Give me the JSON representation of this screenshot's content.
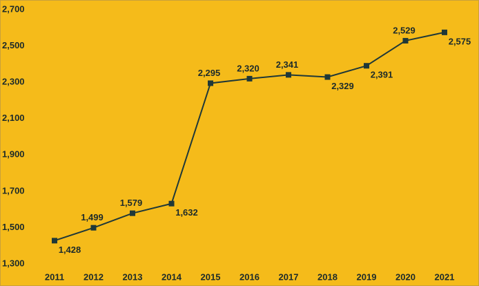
{
  "chart_data": {
    "type": "line",
    "categories": [
      "2011",
      "2012",
      "2013",
      "2014",
      "2015",
      "2016",
      "2017",
      "2018",
      "2019",
      "2020",
      "2021"
    ],
    "series": [
      {
        "color": "#1f3838",
        "values": [
          1428,
          1499,
          1579,
          1632,
          2295,
          2320,
          2341,
          2329,
          2391,
          2529,
          2575
        ],
        "value_labels": [
          "1,428",
          "1,499",
          "1,579",
          "1,632",
          "2,295",
          "2,320",
          "2,341",
          "2,329",
          "2,391",
          "2,529",
          "2,575"
        ]
      }
    ],
    "ylim": [
      1300,
      2700
    ],
    "yticks": [
      {
        "value": 1300,
        "label": "1,300"
      },
      {
        "value": 1500,
        "label": "1,500"
      },
      {
        "value": 1700,
        "label": "1,700"
      },
      {
        "value": 1900,
        "label": "1,900"
      },
      {
        "value": 2100,
        "label": "2,100"
      },
      {
        "value": 2300,
        "label": "2,300"
      },
      {
        "value": 2500,
        "label": "2,500"
      },
      {
        "value": 2700,
        "label": "2,700"
      }
    ],
    "grid": false
  }
}
